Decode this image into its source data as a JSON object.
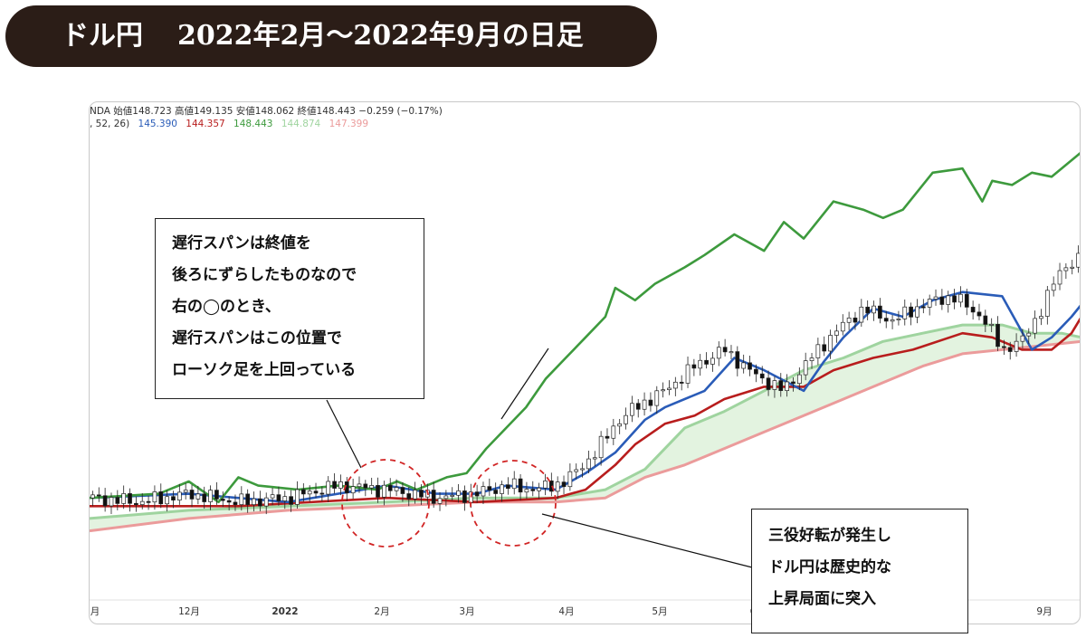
{
  "header": {
    "title_left": "ドル円",
    "title_right": "2022年2月～2022年9月の日足"
  },
  "legend": {
    "ohlc": "NDA  始値148.723  高値149.135  安値148.062  終値148.443  −0.259 (−0.17%)",
    "params": ", 52, 26)",
    "values": [
      {
        "text": "145.390",
        "color": "#2a5cb8"
      },
      {
        "text": "144.357",
        "color": "#b81d1d"
      },
      {
        "text": "148.443",
        "color": "#3d9a3d"
      },
      {
        "text": "144.874",
        "color": "#9fd49f"
      },
      {
        "text": "147.399",
        "color": "#eb9b9b"
      }
    ]
  },
  "callouts": {
    "lagging": [
      "遅行スパンは終値を",
      "後ろにずらしたものなので",
      "右の◯のとき、",
      "遅行スパンはこの位置で",
      "ローソク足を上回っている"
    ],
    "sanyaku": [
      "三役好転が発生し",
      "ドル円は歴史的な",
      "上昇局面に突入"
    ]
  },
  "chart_data": {
    "type": "line",
    "x_tick_labels": [
      "月",
      "12月",
      "2022",
      "2月",
      "3月",
      "4月",
      "5月",
      "6",
      "9月"
    ],
    "series_colors": {
      "conversion": "#2a5cb8",
      "base": "#b81d1d",
      "lagging": "#3d9a3d",
      "span_a": "#9fd49f",
      "span_b": "#eb9b9b",
      "cloud": "#e3f3e0"
    },
    "lagging_span": [
      [
        0,
        0.16
      ],
      [
        0.07,
        0.17
      ],
      [
        0.1,
        0.2
      ],
      [
        0.13,
        0.15
      ],
      [
        0.15,
        0.21
      ],
      [
        0.17,
        0.19
      ],
      [
        0.21,
        0.18
      ],
      [
        0.25,
        0.19
      ],
      [
        0.29,
        0.18
      ],
      [
        0.31,
        0.2
      ],
      [
        0.33,
        0.18
      ],
      [
        0.36,
        0.21
      ],
      [
        0.38,
        0.22
      ],
      [
        0.4,
        0.28
      ],
      [
        0.42,
        0.33
      ],
      [
        0.44,
        0.38
      ],
      [
        0.46,
        0.45
      ],
      [
        0.48,
        0.5
      ],
      [
        0.5,
        0.55
      ],
      [
        0.52,
        0.6
      ],
      [
        0.53,
        0.67
      ],
      [
        0.55,
        0.64
      ],
      [
        0.57,
        0.68
      ],
      [
        0.6,
        0.72
      ],
      [
        0.62,
        0.75
      ],
      [
        0.65,
        0.8
      ],
      [
        0.68,
        0.76
      ],
      [
        0.7,
        0.83
      ],
      [
        0.72,
        0.79
      ],
      [
        0.75,
        0.88
      ],
      [
        0.78,
        0.86
      ],
      [
        0.8,
        0.84
      ],
      [
        0.82,
        0.86
      ],
      [
        0.85,
        0.95
      ],
      [
        0.88,
        0.96
      ],
      [
        0.9,
        0.88
      ],
      [
        0.91,
        0.93
      ],
      [
        0.93,
        0.92
      ],
      [
        0.95,
        0.95
      ],
      [
        0.97,
        0.94
      ],
      [
        1.0,
        1.0
      ]
    ],
    "conversion_line": [
      [
        0,
        0.16
      ],
      [
        0.1,
        0.17
      ],
      [
        0.2,
        0.15
      ],
      [
        0.3,
        0.19
      ],
      [
        0.35,
        0.17
      ],
      [
        0.39,
        0.17
      ],
      [
        0.42,
        0.19
      ],
      [
        0.47,
        0.18
      ],
      [
        0.5,
        0.22
      ],
      [
        0.53,
        0.27
      ],
      [
        0.56,
        0.35
      ],
      [
        0.58,
        0.38
      ],
      [
        0.62,
        0.42
      ],
      [
        0.65,
        0.5
      ],
      [
        0.68,
        0.47
      ],
      [
        0.72,
        0.42
      ],
      [
        0.74,
        0.49
      ],
      [
        0.76,
        0.55
      ],
      [
        0.79,
        0.62
      ],
      [
        0.82,
        0.6
      ],
      [
        0.85,
        0.64
      ],
      [
        0.88,
        0.66
      ],
      [
        0.92,
        0.65
      ],
      [
        0.95,
        0.52
      ],
      [
        0.97,
        0.55
      ],
      [
        0.99,
        0.6
      ],
      [
        1.0,
        0.63
      ]
    ],
    "base_line": [
      [
        0,
        0.14
      ],
      [
        0.15,
        0.14
      ],
      [
        0.3,
        0.16
      ],
      [
        0.39,
        0.15
      ],
      [
        0.47,
        0.16
      ],
      [
        0.5,
        0.18
      ],
      [
        0.53,
        0.24
      ],
      [
        0.55,
        0.29
      ],
      [
        0.58,
        0.34
      ],
      [
        0.61,
        0.36
      ],
      [
        0.64,
        0.4
      ],
      [
        0.68,
        0.43
      ],
      [
        0.72,
        0.43
      ],
      [
        0.75,
        0.47
      ],
      [
        0.79,
        0.5
      ],
      [
        0.83,
        0.52
      ],
      [
        0.88,
        0.56
      ],
      [
        0.91,
        0.55
      ],
      [
        0.94,
        0.52
      ],
      [
        0.97,
        0.52
      ],
      [
        0.99,
        0.56
      ],
      [
        1.0,
        0.6
      ]
    ],
    "leading_span_a": [
      [
        0,
        0.11
      ],
      [
        0.1,
        0.13
      ],
      [
        0.2,
        0.14
      ],
      [
        0.3,
        0.15
      ],
      [
        0.39,
        0.16
      ],
      [
        0.47,
        0.16
      ],
      [
        0.52,
        0.18
      ],
      [
        0.56,
        0.23
      ],
      [
        0.6,
        0.33
      ],
      [
        0.64,
        0.37
      ],
      [
        0.68,
        0.42
      ],
      [
        0.72,
        0.47
      ],
      [
        0.76,
        0.5
      ],
      [
        0.8,
        0.54
      ],
      [
        0.84,
        0.56
      ],
      [
        0.88,
        0.58
      ],
      [
        0.92,
        0.58
      ],
      [
        0.95,
        0.56
      ],
      [
        0.98,
        0.56
      ],
      [
        1.0,
        0.55
      ]
    ],
    "leading_span_b": [
      [
        0,
        0.08
      ],
      [
        0.1,
        0.11
      ],
      [
        0.2,
        0.13
      ],
      [
        0.3,
        0.14
      ],
      [
        0.39,
        0.15
      ],
      [
        0.47,
        0.15
      ],
      [
        0.52,
        0.16
      ],
      [
        0.56,
        0.21
      ],
      [
        0.6,
        0.24
      ],
      [
        0.64,
        0.28
      ],
      [
        0.68,
        0.32
      ],
      [
        0.72,
        0.36
      ],
      [
        0.76,
        0.4
      ],
      [
        0.8,
        0.44
      ],
      [
        0.84,
        0.48
      ],
      [
        0.88,
        0.51
      ],
      [
        0.92,
        0.52
      ],
      [
        0.96,
        0.53
      ],
      [
        1.0,
        0.54
      ]
    ],
    "candles_close": [
      [
        0,
        0.16
      ],
      [
        0.05,
        0.15
      ],
      [
        0.1,
        0.17
      ],
      [
        0.15,
        0.15
      ],
      [
        0.2,
        0.16
      ],
      [
        0.25,
        0.19
      ],
      [
        0.3,
        0.18
      ],
      [
        0.35,
        0.16
      ],
      [
        0.39,
        0.17
      ],
      [
        0.42,
        0.19
      ],
      [
        0.45,
        0.18
      ],
      [
        0.48,
        0.2
      ],
      [
        0.51,
        0.27
      ],
      [
        0.53,
        0.34
      ],
      [
        0.55,
        0.38
      ],
      [
        0.58,
        0.42
      ],
      [
        0.61,
        0.48
      ],
      [
        0.64,
        0.52
      ],
      [
        0.67,
        0.46
      ],
      [
        0.7,
        0.42
      ],
      [
        0.72,
        0.48
      ],
      [
        0.75,
        0.56
      ],
      [
        0.78,
        0.62
      ],
      [
        0.81,
        0.59
      ],
      [
        0.84,
        0.63
      ],
      [
        0.87,
        0.65
      ],
      [
        0.9,
        0.6
      ],
      [
        0.92,
        0.52
      ],
      [
        0.94,
        0.54
      ],
      [
        0.96,
        0.62
      ],
      [
        0.98,
        0.72
      ],
      [
        1.0,
        0.74
      ]
    ]
  }
}
